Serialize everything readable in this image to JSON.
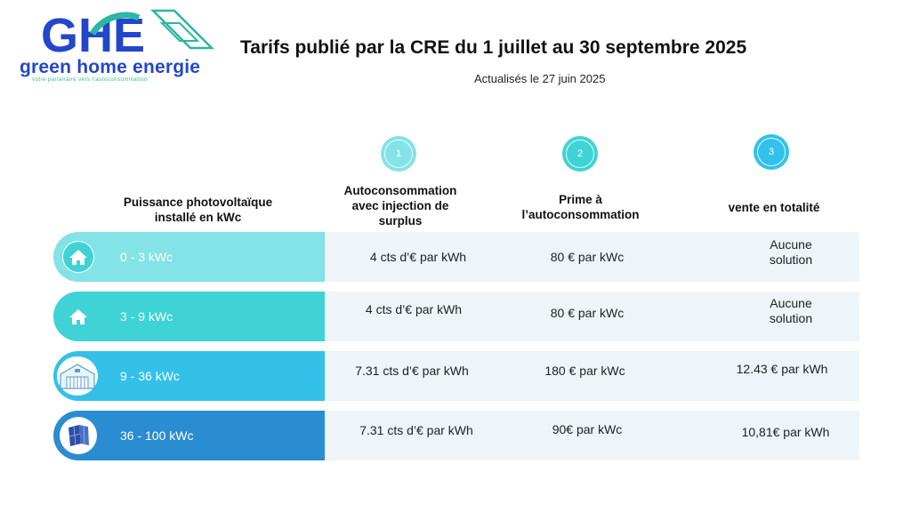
{
  "brand": {
    "initials": "GHE",
    "name": "green home energie",
    "tagline": "votre partenaire vers l'autoconsommation",
    "primary_color": "#2347c9",
    "accent_color": "#2bb7a0"
  },
  "header": {
    "title": "Tarifs  publié par la CRE du 1 juillet  au 30 septembre  2025",
    "subtitle": "Actualisés le 27 juin  2025"
  },
  "steps": [
    "1",
    "2",
    "3"
  ],
  "columns": {
    "power": [
      "Puissance  photovoltaïque",
      "installé en kWc"
    ],
    "autoconsommation": [
      "Autoconsommation",
      "avec injection de",
      "surplus"
    ],
    "prime": [
      "Prime à",
      "l’autoconsommation"
    ],
    "vente": "vente en totalité"
  },
  "rows": [
    {
      "range": "0  - 3 kWc",
      "icon": "house-icon",
      "color": "#84e3e6",
      "autoconsommation": "4 cts d’€ par kWh",
      "prime": "80 € par kWc",
      "vente": [
        "Aucune",
        "solution"
      ]
    },
    {
      "range": "3 - 9 kWc",
      "icon": "house-icon",
      "color": "#3fd3d6",
      "autoconsommation": "4 cts d’€ par kWh",
      "prime": "80 € par kWc",
      "vente": [
        "Aucune",
        "solution"
      ]
    },
    {
      "range": "9 - 36 kWc",
      "icon": "warehouse-icon",
      "color": "#33c1ea",
      "autoconsommation": "7.31 cts d’€ par kWh",
      "prime": "180 € par kWc",
      "vente": [
        "12.43 € par kWh"
      ]
    },
    {
      "range": "36 - 100 kWc",
      "icon": "solar-panel-icon",
      "color": "#2a8dd1",
      "autoconsommation": "7.31 cts d’€ par kWh",
      "prime": "90€ par kWc",
      "vente": [
        "10,81€ par kWh"
      ]
    }
  ]
}
